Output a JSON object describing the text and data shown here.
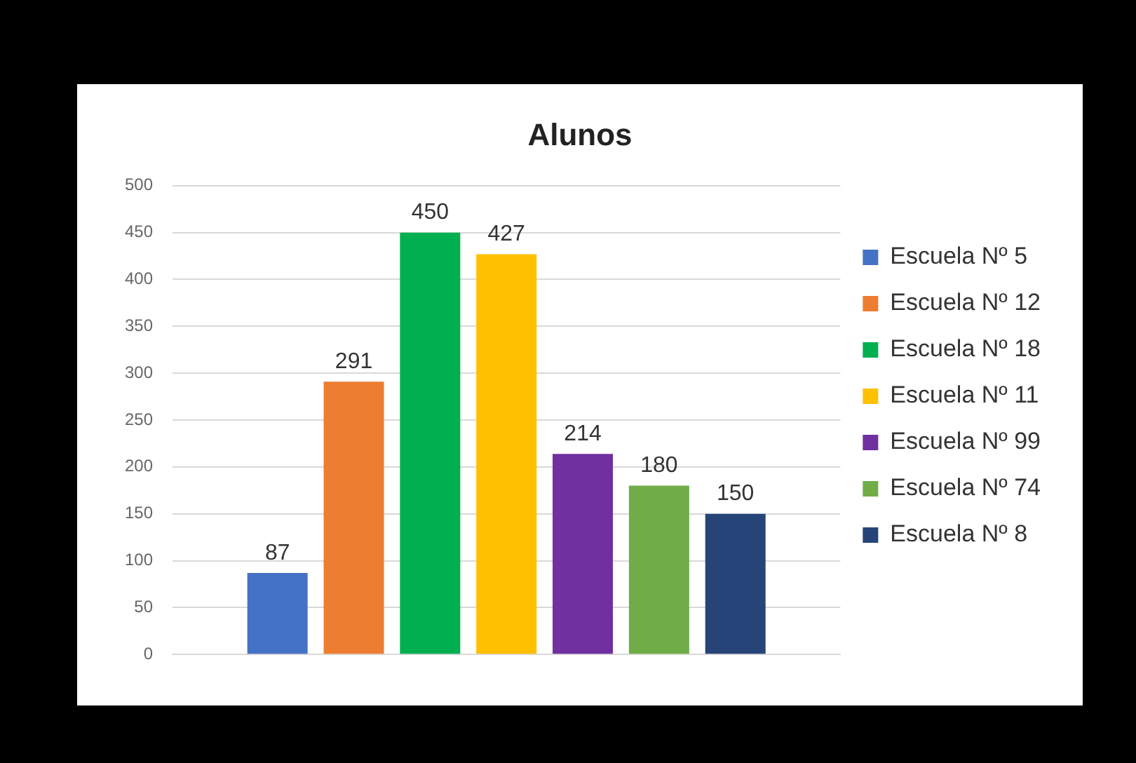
{
  "chart_data": {
    "type": "bar",
    "title": "Alunos",
    "categories": [
      null
    ],
    "series": [
      {
        "name": "Escuela Nº 5",
        "color": "#4472c4",
        "values": [
          87
        ]
      },
      {
        "name": "Escuela Nº 12",
        "color": "#ed7d31",
        "values": [
          291
        ]
      },
      {
        "name": "Escuela Nº 18",
        "color": "#00b050",
        "values": [
          450
        ]
      },
      {
        "name": "Escuela Nº 11",
        "color": "#ffc000",
        "values": [
          427
        ]
      },
      {
        "name": "Escuela Nº 99",
        "color": "#7030a0",
        "values": [
          214
        ]
      },
      {
        "name": "Escuela Nº 74",
        "color": "#70ad47",
        "values": [
          180
        ]
      },
      {
        "name": "Escuela Nº 8",
        "color": "#264478",
        "values": [
          150
        ]
      }
    ],
    "ylim": [
      0,
      500
    ],
    "yticks": [
      0,
      50,
      100,
      150,
      200,
      250,
      300,
      350,
      400,
      450,
      500
    ],
    "grid": "y",
    "legend": "right",
    "data_labels": true
  }
}
